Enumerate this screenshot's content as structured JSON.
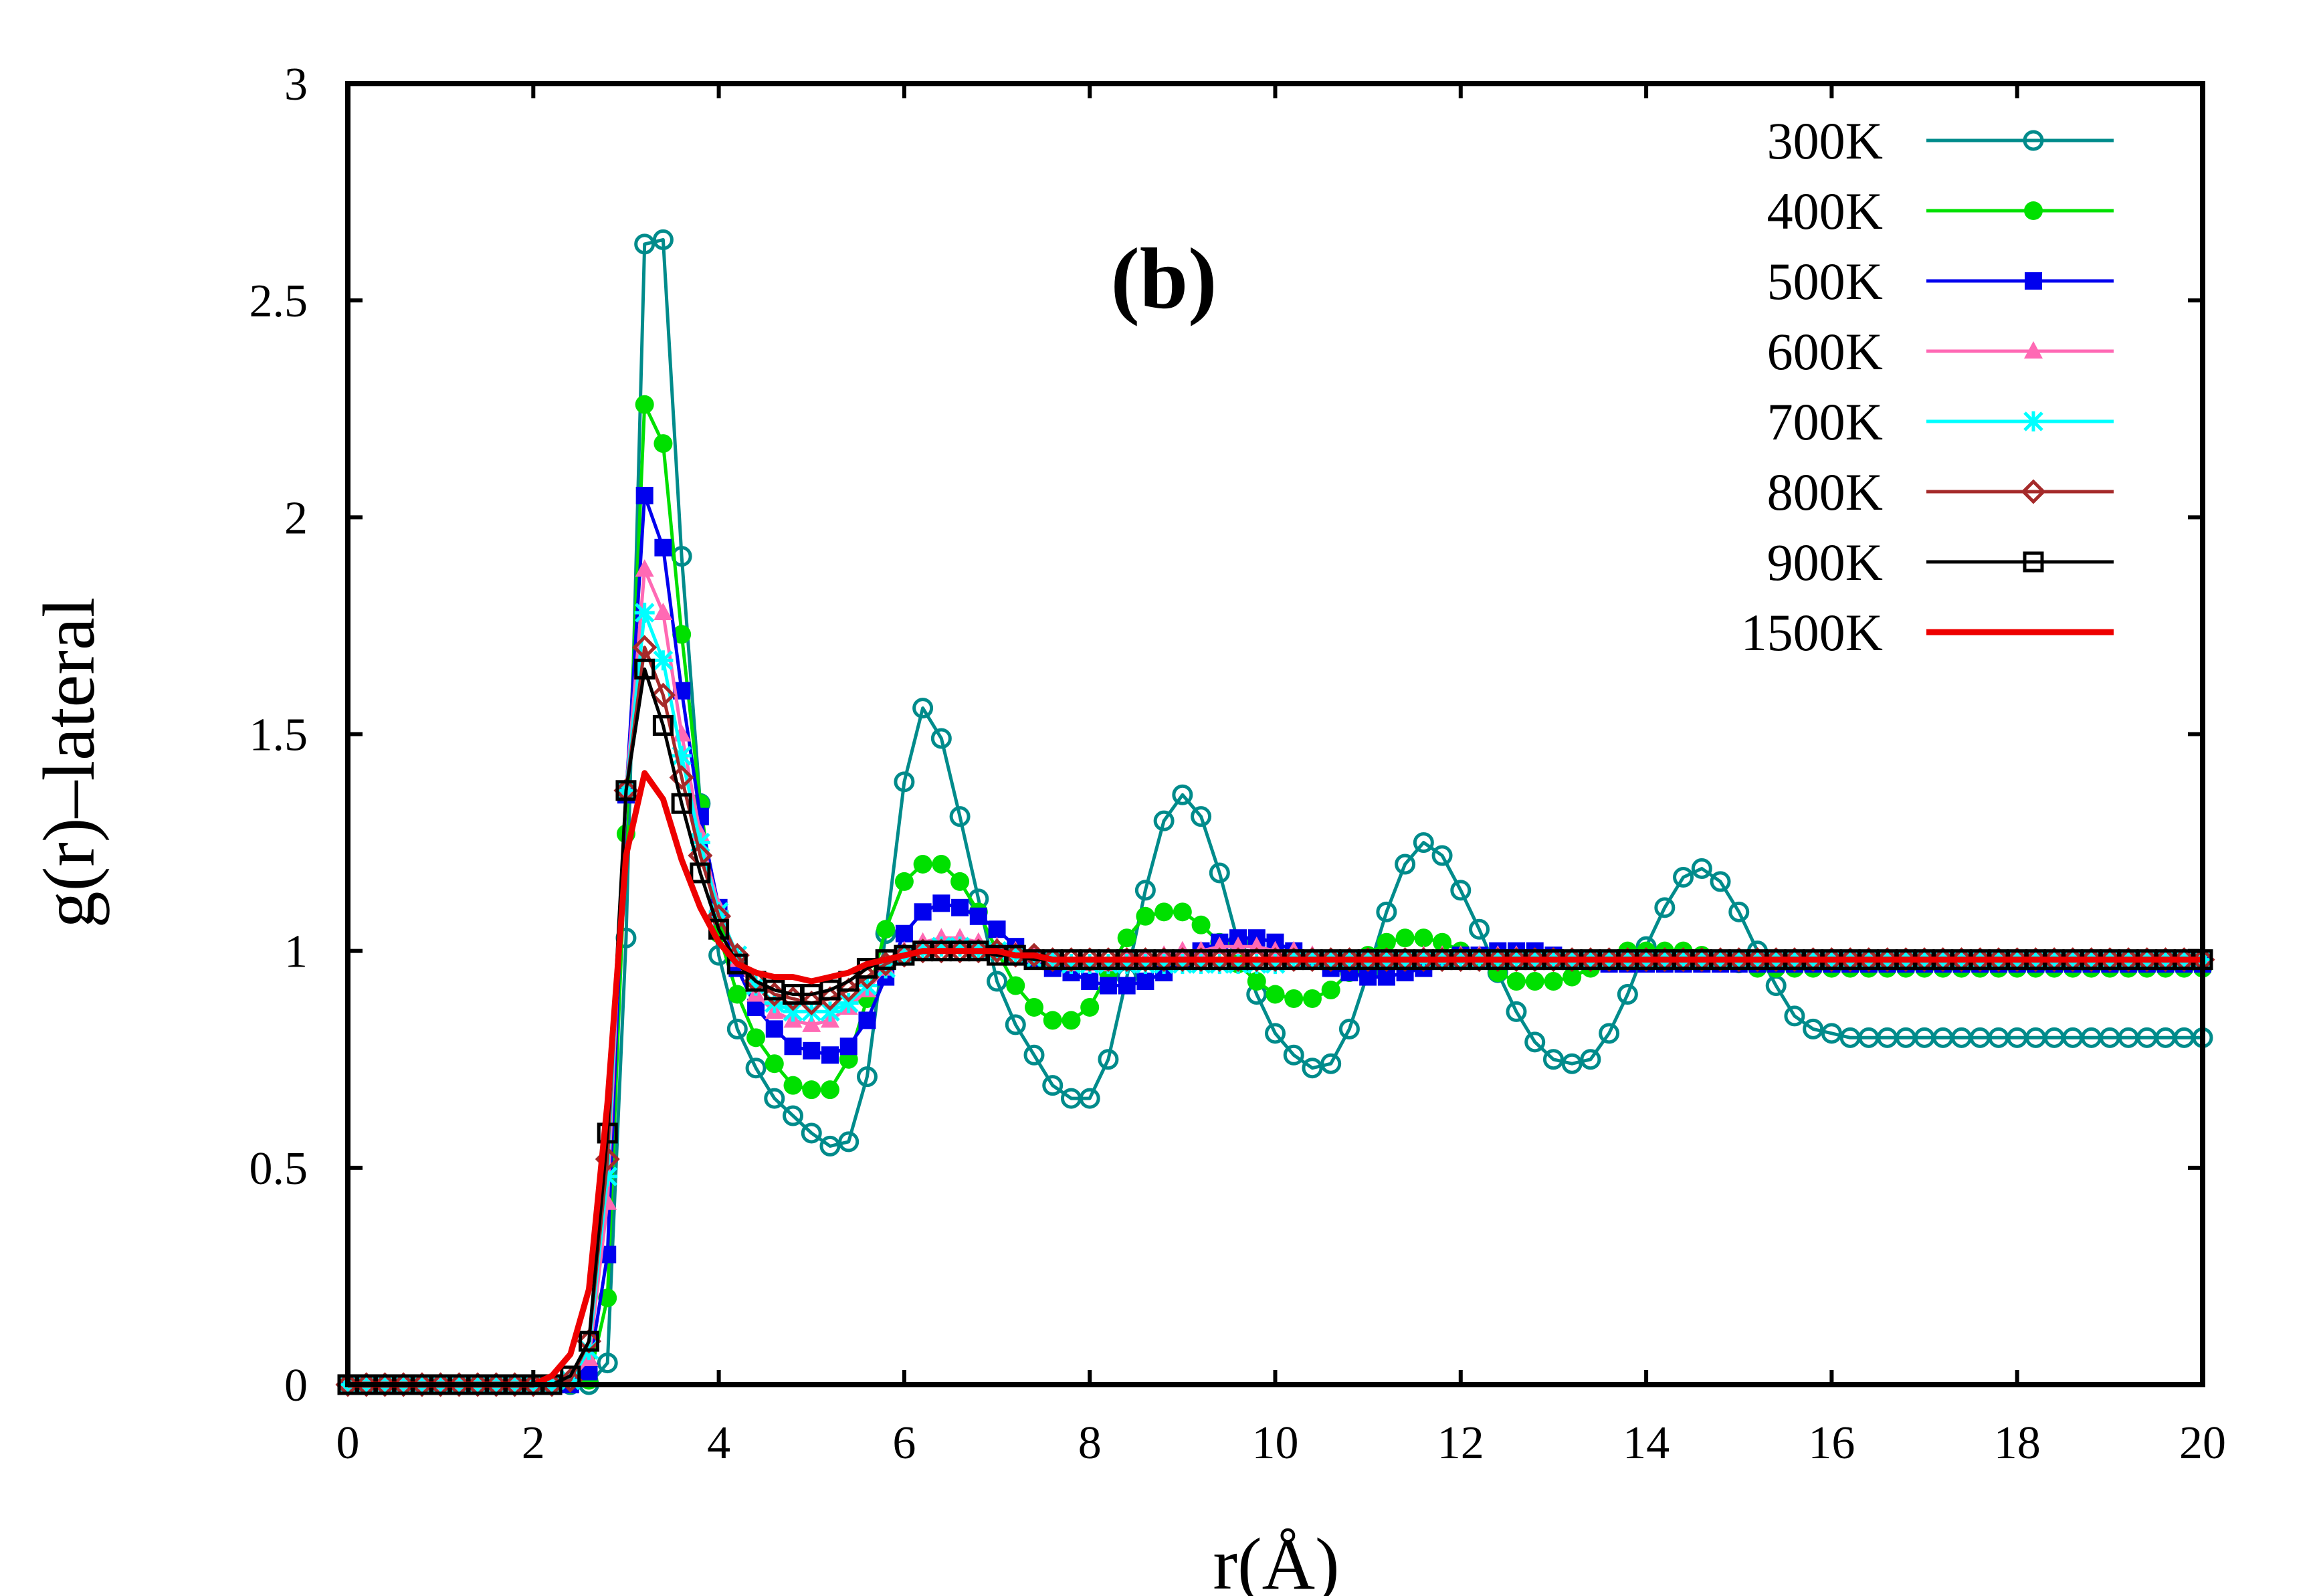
{
  "chart_data": {
    "type": "line",
    "title": "",
    "panel_label": "(b)",
    "xlabel": "r(Å)",
    "ylabel": "g(r)–lateral",
    "xlim": [
      0,
      20
    ],
    "ylim": [
      0,
      3
    ],
    "x_ticks": [
      0,
      2,
      4,
      6,
      8,
      10,
      12,
      14,
      16,
      18,
      20
    ],
    "x_tick_labels": [
      "0",
      "2",
      "4",
      "6",
      "8",
      "10",
      "12",
      "14",
      "16",
      "18",
      "20"
    ],
    "y_ticks": [
      0,
      0.5,
      1,
      1.5,
      2,
      2.5,
      3
    ],
    "y_tick_labels": [
      "0",
      "0.5",
      "1",
      "1.5",
      "2",
      "2.5",
      "3"
    ],
    "grid": false,
    "legend_position": "top-right",
    "x": [
      0.0,
      0.2,
      0.4,
      0.6,
      0.8,
      1.0,
      1.2,
      1.4,
      1.6,
      1.8,
      2.0,
      2.2,
      2.4,
      2.6,
      2.8,
      3.0,
      3.2,
      3.4,
      3.6,
      3.8,
      4.0,
      4.2,
      4.4,
      4.6,
      4.8,
      5.0,
      5.2,
      5.4,
      5.6,
      5.8,
      6.0,
      6.2,
      6.4,
      6.6,
      6.8,
      7.0,
      7.2,
      7.4,
      7.6,
      7.8,
      8.0,
      8.2,
      8.4,
      8.6,
      8.8,
      9.0,
      9.2,
      9.4,
      9.6,
      9.8,
      10.0,
      10.2,
      10.4,
      10.6,
      10.8,
      11.0,
      11.2,
      11.4,
      11.6,
      11.8,
      12.0,
      12.2,
      12.4,
      12.6,
      12.8,
      13.0,
      13.2,
      13.4,
      13.6,
      13.8,
      14.0,
      14.2,
      14.4,
      14.6,
      14.8,
      15.0,
      15.2,
      15.4,
      15.6,
      15.8,
      16.0,
      16.2,
      16.4,
      16.6,
      16.8,
      17.0,
      17.2,
      17.4,
      17.6,
      17.8,
      18.0,
      18.2,
      18.4,
      18.6,
      18.8,
      19.0,
      19.2,
      19.4,
      19.6,
      19.8,
      20.0
    ],
    "series": [
      {
        "name": "300K",
        "color": "#008b8b",
        "marker": "circle-open",
        "values": [
          0,
          0,
          0,
          0,
          0,
          0,
          0,
          0,
          0,
          0,
          0,
          0,
          0,
          0,
          0.05,
          1.03,
          2.63,
          2.64,
          1.91,
          1.34,
          0.99,
          0.82,
          0.73,
          0.66,
          0.62,
          0.58,
          0.55,
          0.56,
          0.71,
          1.04,
          1.39,
          1.56,
          1.49,
          1.31,
          1.12,
          0.93,
          0.83,
          0.76,
          0.69,
          0.66,
          0.66,
          0.75,
          0.94,
          1.14,
          1.3,
          1.36,
          1.31,
          1.18,
          1.02,
          0.9,
          0.81,
          0.76,
          0.73,
          0.74,
          0.82,
          0.95,
          1.09,
          1.2,
          1.25,
          1.22,
          1.14,
          1.05,
          0.95,
          0.86,
          0.79,
          0.75,
          0.74,
          0.75,
          0.81,
          0.9,
          1.01,
          1.1,
          1.17,
          1.19,
          1.16,
          1.09,
          1.0,
          0.92,
          0.85,
          0.82,
          0.81,
          0.8,
          0.8,
          0.8,
          0.8,
          0.8,
          0.8,
          0.8,
          0.8,
          0.8,
          0.8,
          0.8,
          0.8,
          0.8,
          0.8,
          0.8,
          0.8,
          0.8,
          0.8,
          0.8,
          0.8
        ]
      },
      {
        "name": "400K",
        "color": "#00e000",
        "marker": "circle-filled",
        "values": [
          0,
          0,
          0,
          0,
          0,
          0,
          0,
          0,
          0,
          0,
          0,
          0,
          0,
          0.01,
          0.2,
          1.27,
          2.26,
          2.17,
          1.73,
          1.34,
          1.04,
          0.9,
          0.8,
          0.74,
          0.69,
          0.68,
          0.68,
          0.75,
          0.89,
          1.05,
          1.16,
          1.2,
          1.2,
          1.16,
          1.09,
          1.0,
          0.92,
          0.87,
          0.84,
          0.84,
          0.87,
          0.95,
          1.03,
          1.08,
          1.09,
          1.09,
          1.06,
          1.02,
          0.97,
          0.93,
          0.9,
          0.89,
          0.89,
          0.91,
          0.95,
          0.99,
          1.02,
          1.03,
          1.03,
          1.02,
          1.0,
          0.98,
          0.95,
          0.93,
          0.93,
          0.93,
          0.94,
          0.96,
          0.98,
          1.0,
          1.0,
          1.0,
          1.0,
          0.99,
          0.98,
          0.97,
          0.96,
          0.96,
          0.96,
          0.96,
          0.96,
          0.96,
          0.96,
          0.96,
          0.96,
          0.96,
          0.96,
          0.96,
          0.96,
          0.96,
          0.96,
          0.96,
          0.96,
          0.96,
          0.96,
          0.96,
          0.96,
          0.96,
          0.96,
          0.96,
          0.96
        ]
      },
      {
        "name": "500K",
        "color": "#0000ee",
        "marker": "square-filled",
        "values": [
          0,
          0,
          0,
          0,
          0,
          0,
          0,
          0,
          0,
          0,
          0,
          0,
          0,
          0.03,
          0.3,
          1.36,
          2.05,
          1.93,
          1.6,
          1.31,
          1.1,
          0.96,
          0.87,
          0.82,
          0.78,
          0.77,
          0.76,
          0.78,
          0.84,
          0.94,
          1.04,
          1.09,
          1.11,
          1.1,
          1.08,
          1.05,
          1.01,
          0.98,
          0.96,
          0.95,
          0.93,
          0.92,
          0.92,
          0.93,
          0.95,
          0.98,
          1.0,
          1.02,
          1.03,
          1.03,
          1.02,
          1.0,
          0.98,
          0.96,
          0.95,
          0.94,
          0.94,
          0.95,
          0.96,
          0.98,
          0.99,
          0.99,
          1.0,
          1.0,
          1.0,
          0.99,
          0.98,
          0.98,
          0.97,
          0.97,
          0.97,
          0.97,
          0.97,
          0.97,
          0.97,
          0.97,
          0.97,
          0.97,
          0.97,
          0.97,
          0.97,
          0.97,
          0.97,
          0.97,
          0.97,
          0.97,
          0.97,
          0.97,
          0.97,
          0.97,
          0.97,
          0.97,
          0.97,
          0.97,
          0.97,
          0.97,
          0.97,
          0.97,
          0.97,
          0.97,
          0.97
        ]
      },
      {
        "name": "600K",
        "color": "#ff69b4",
        "marker": "triangle-filled",
        "values": [
          0,
          0,
          0,
          0,
          0,
          0,
          0,
          0,
          0,
          0,
          0,
          0,
          0.01,
          0.06,
          0.42,
          1.37,
          1.88,
          1.78,
          1.5,
          1.27,
          1.1,
          0.98,
          0.9,
          0.86,
          0.84,
          0.83,
          0.84,
          0.87,
          0.91,
          0.96,
          1.0,
          1.02,
          1.03,
          1.03,
          1.02,
          1.01,
          1.0,
          0.99,
          0.98,
          0.97,
          0.97,
          0.97,
          0.98,
          0.98,
          0.99,
          1.0,
          1.0,
          1.01,
          1.01,
          1.01,
          1.0,
          1.0,
          0.99,
          0.98,
          0.98,
          0.98,
          0.98,
          0.98,
          0.99,
          0.99,
          0.99,
          0.99,
          0.99,
          0.99,
          0.98,
          0.98,
          0.98,
          0.98,
          0.98,
          0.98,
          0.98,
          0.98,
          0.98,
          0.98,
          0.98,
          0.98,
          0.98,
          0.98,
          0.98,
          0.98,
          0.98,
          0.98,
          0.98,
          0.98,
          0.98,
          0.98,
          0.98,
          0.98,
          0.98,
          0.98,
          0.98,
          0.98,
          0.98,
          0.98,
          0.98,
          0.98,
          0.98,
          0.98,
          0.98,
          0.98,
          0.98
        ]
      },
      {
        "name": "700K",
        "color": "#00ffff",
        "marker": "star",
        "values": [
          0,
          0,
          0,
          0,
          0,
          0,
          0,
          0,
          0,
          0,
          0,
          0,
          0.01,
          0.08,
          0.48,
          1.37,
          1.78,
          1.67,
          1.45,
          1.25,
          1.09,
          0.99,
          0.92,
          0.88,
          0.86,
          0.86,
          0.86,
          0.88,
          0.92,
          0.96,
          0.99,
          1.0,
          1.01,
          1.01,
          1.0,
          1.0,
          0.99,
          0.98,
          0.98,
          0.97,
          0.97,
          0.97,
          0.97,
          0.97,
          0.97,
          0.97,
          0.97,
          0.97,
          0.97,
          0.97,
          0.97,
          0.98,
          0.98,
          0.98,
          0.98,
          0.98,
          0.98,
          0.98,
          0.98,
          0.98,
          0.98,
          0.98,
          0.98,
          0.98,
          0.98,
          0.98,
          0.98,
          0.98,
          0.98,
          0.98,
          0.98,
          0.98,
          0.98,
          0.98,
          0.98,
          0.98,
          0.98,
          0.98,
          0.98,
          0.98,
          0.98,
          0.98,
          0.98,
          0.98,
          0.98,
          0.98,
          0.98,
          0.98,
          0.98,
          0.98,
          0.98,
          0.98,
          0.98,
          0.98,
          0.98,
          0.98,
          0.98,
          0.98,
          0.98,
          0.98,
          0.98
        ]
      },
      {
        "name": "800K",
        "color": "#a52a2a",
        "marker": "diamond-open",
        "values": [
          0,
          0,
          0,
          0,
          0,
          0,
          0,
          0,
          0,
          0,
          0,
          0,
          0.01,
          0.1,
          0.52,
          1.37,
          1.7,
          1.59,
          1.4,
          1.22,
          1.08,
          0.99,
          0.93,
          0.9,
          0.89,
          0.88,
          0.89,
          0.91,
          0.94,
          0.97,
          0.99,
          1.0,
          1.0,
          1.0,
          1.0,
          1.0,
          0.99,
          0.99,
          0.98,
          0.98,
          0.98,
          0.98,
          0.98,
          0.98,
          0.98,
          0.98,
          0.98,
          0.98,
          0.98,
          0.98,
          0.98,
          0.98,
          0.98,
          0.98,
          0.98,
          0.98,
          0.98,
          0.98,
          0.98,
          0.98,
          0.98,
          0.98,
          0.98,
          0.98,
          0.98,
          0.98,
          0.98,
          0.98,
          0.98,
          0.98,
          0.98,
          0.98,
          0.98,
          0.98,
          0.98,
          0.98,
          0.98,
          0.98,
          0.98,
          0.98,
          0.98,
          0.98,
          0.98,
          0.98,
          0.98,
          0.98,
          0.98,
          0.98,
          0.98,
          0.98,
          0.98,
          0.98,
          0.98,
          0.98,
          0.98,
          0.98,
          0.98,
          0.98,
          0.98,
          0.98,
          0.98
        ]
      },
      {
        "name": "900K",
        "color": "#000000",
        "marker": "square-open",
        "values": [
          0,
          0,
          0,
          0,
          0,
          0,
          0,
          0,
          0,
          0,
          0,
          0,
          0.02,
          0.1,
          0.58,
          1.37,
          1.65,
          1.52,
          1.34,
          1.18,
          1.05,
          0.97,
          0.93,
          0.91,
          0.9,
          0.9,
          0.91,
          0.93,
          0.96,
          0.98,
          0.99,
          1.0,
          1.0,
          1.0,
          1.0,
          0.99,
          0.99,
          0.98,
          0.98,
          0.98,
          0.98,
          0.98,
          0.98,
          0.98,
          0.98,
          0.98,
          0.98,
          0.98,
          0.98,
          0.98,
          0.98,
          0.98,
          0.98,
          0.98,
          0.98,
          0.98,
          0.98,
          0.98,
          0.98,
          0.98,
          0.98,
          0.98,
          0.98,
          0.98,
          0.98,
          0.98,
          0.98,
          0.98,
          0.98,
          0.98,
          0.98,
          0.98,
          0.98,
          0.98,
          0.98,
          0.98,
          0.98,
          0.98,
          0.98,
          0.98,
          0.98,
          0.98,
          0.98,
          0.98,
          0.98,
          0.98,
          0.98,
          0.98,
          0.98,
          0.98,
          0.98,
          0.98,
          0.98,
          0.98,
          0.98,
          0.98,
          0.98,
          0.98,
          0.98,
          0.98,
          0.98
        ]
      },
      {
        "name": "1500K",
        "color": "#ee0000",
        "marker": "none",
        "values": [
          0,
          0,
          0,
          0,
          0,
          0,
          0,
          0,
          0,
          0,
          0,
          0.02,
          0.07,
          0.22,
          0.65,
          1.22,
          1.41,
          1.35,
          1.21,
          1.1,
          1.02,
          0.97,
          0.95,
          0.94,
          0.94,
          0.93,
          0.94,
          0.95,
          0.97,
          0.98,
          0.99,
          1.0,
          1.0,
          1.0,
          1.0,
          1.0,
          0.99,
          0.99,
          0.98,
          0.98,
          0.98,
          0.98,
          0.98,
          0.98,
          0.98,
          0.98,
          0.98,
          0.98,
          0.98,
          0.98,
          0.98,
          0.98,
          0.98,
          0.98,
          0.98,
          0.98,
          0.98,
          0.98,
          0.98,
          0.98,
          0.98,
          0.98,
          0.98,
          0.98,
          0.98,
          0.98,
          0.98,
          0.98,
          0.98,
          0.98,
          0.98,
          0.98,
          0.98,
          0.98,
          0.98,
          0.98,
          0.98,
          0.98,
          0.98,
          0.98,
          0.98,
          0.98,
          0.98,
          0.98,
          0.98,
          0.98,
          0.98,
          0.98,
          0.98,
          0.98,
          0.98,
          0.98,
          0.98,
          0.98,
          0.98,
          0.98,
          0.98,
          0.98,
          0.98,
          0.98,
          0.98
        ]
      }
    ]
  }
}
